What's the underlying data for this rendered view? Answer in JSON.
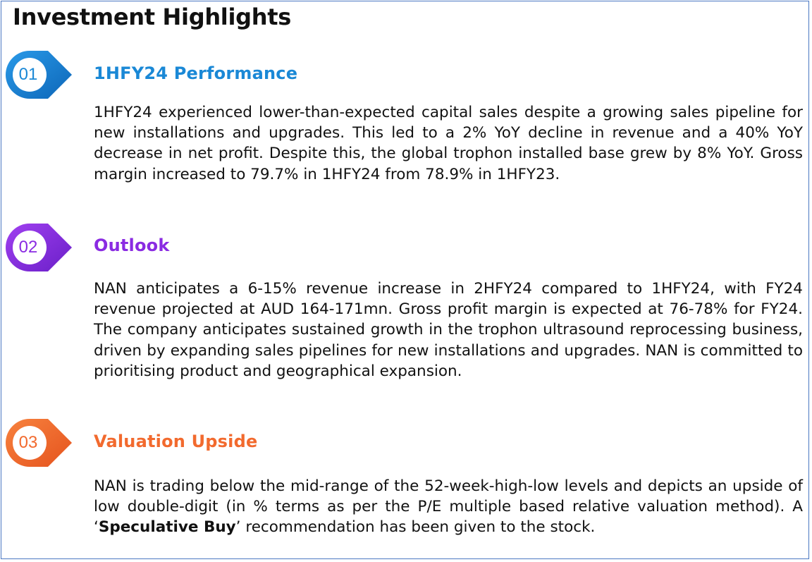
{
  "title": "Investment Highlights",
  "colors": {
    "section1": "#1a88d6",
    "section2": "#8a2be2",
    "section3": "#f26a2e",
    "border": "#4a78c2"
  },
  "sections": [
    {
      "number": "01",
      "heading": "1HFY24 Performance",
      "body": "1HFY24 experienced lower-than-expected capital sales despite a growing sales pipeline for new installations and upgrades. This led to a 2% YoY decline in revenue and a 40% YoY decrease in net profit. Despite this, the global trophon installed base grew by 8% YoY. Gross margin increased to 79.7% in 1HFY24 from 78.9% in 1HFY23."
    },
    {
      "number": "02",
      "heading": "Outlook",
      "body": "NAN anticipates a 6-15% revenue increase in 2HFY24 compared to 1HFY24, with FY24 revenue projected at AUD 164-171mn. Gross profit margin is expected at 76-78% for FY24. The company anticipates sustained growth in the trophon ultrasound reprocessing business, driven by expanding sales pipelines for new installations and upgrades. NAN is committed to prioritising product and geographical expansion."
    },
    {
      "number": "03",
      "heading": "Valuation Upside",
      "body_pre": "NAN is trading below the mid-range of the 52-week-high-low levels and depicts an upside of low double-digit (in % terms as per the P/E multiple based relative valuation method). A ‘",
      "body_bold": "Speculative Buy",
      "body_post": "’ recommendation has been given to the stock."
    }
  ]
}
